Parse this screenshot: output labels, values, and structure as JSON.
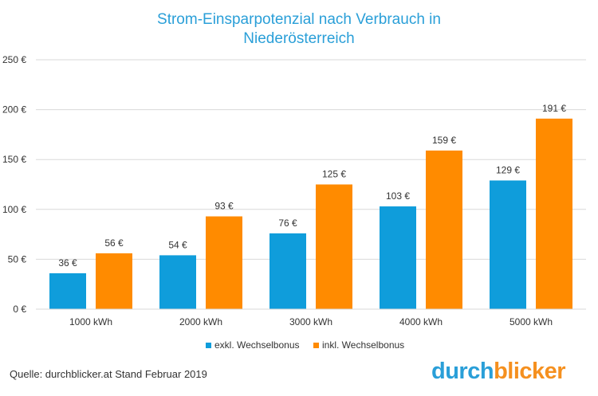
{
  "chart_data": {
    "type": "bar",
    "title_line1": "Strom-Einsparpotenzial  nach Verbrauch in",
    "title_line2": "Niederösterreich",
    "categories": [
      "1000 kWh",
      "2000 kWh",
      "3000 kWh",
      "4000 kWh",
      "5000 kWh"
    ],
    "series": [
      {
        "name": "exkl. Wechselbonus",
        "values": [
          36,
          54,
          76,
          103,
          129
        ],
        "color": "#0f9ddb"
      },
      {
        "name": "inkl. Wechselbonus",
        "values": [
          56,
          93,
          125,
          159,
          191
        ],
        "color": "#ff8b00"
      }
    ],
    "value_suffix": " €",
    "ylim": [
      0,
      250
    ],
    "yticks": [
      0,
      50,
      100,
      150,
      200,
      250
    ],
    "ytick_labels": [
      "0 €",
      "50 €",
      "100 €",
      "150 €",
      "200 €",
      "250 €"
    ],
    "grid": true,
    "legend_position": "bottom"
  },
  "source_text": "Quelle: durchblicker.at Stand Februar 2019",
  "logo": {
    "part1": "durch",
    "part2": "blicker"
  }
}
